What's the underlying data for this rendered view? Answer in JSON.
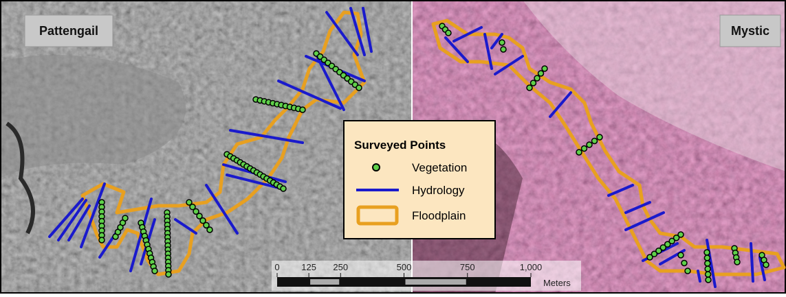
{
  "panels": [
    {
      "label": "Pattengail"
    },
    {
      "label": "Mystic"
    }
  ],
  "legend": {
    "title": "Surveyed Points",
    "items": [
      "Vegetation",
      "Hydrology",
      "Floodplain"
    ]
  },
  "scale_bar": {
    "ticks": [
      0,
      125,
      250,
      500,
      750,
      {
        "value": 1000,
        "label": "1,000"
      }
    ],
    "unit": "Meters"
  }
}
